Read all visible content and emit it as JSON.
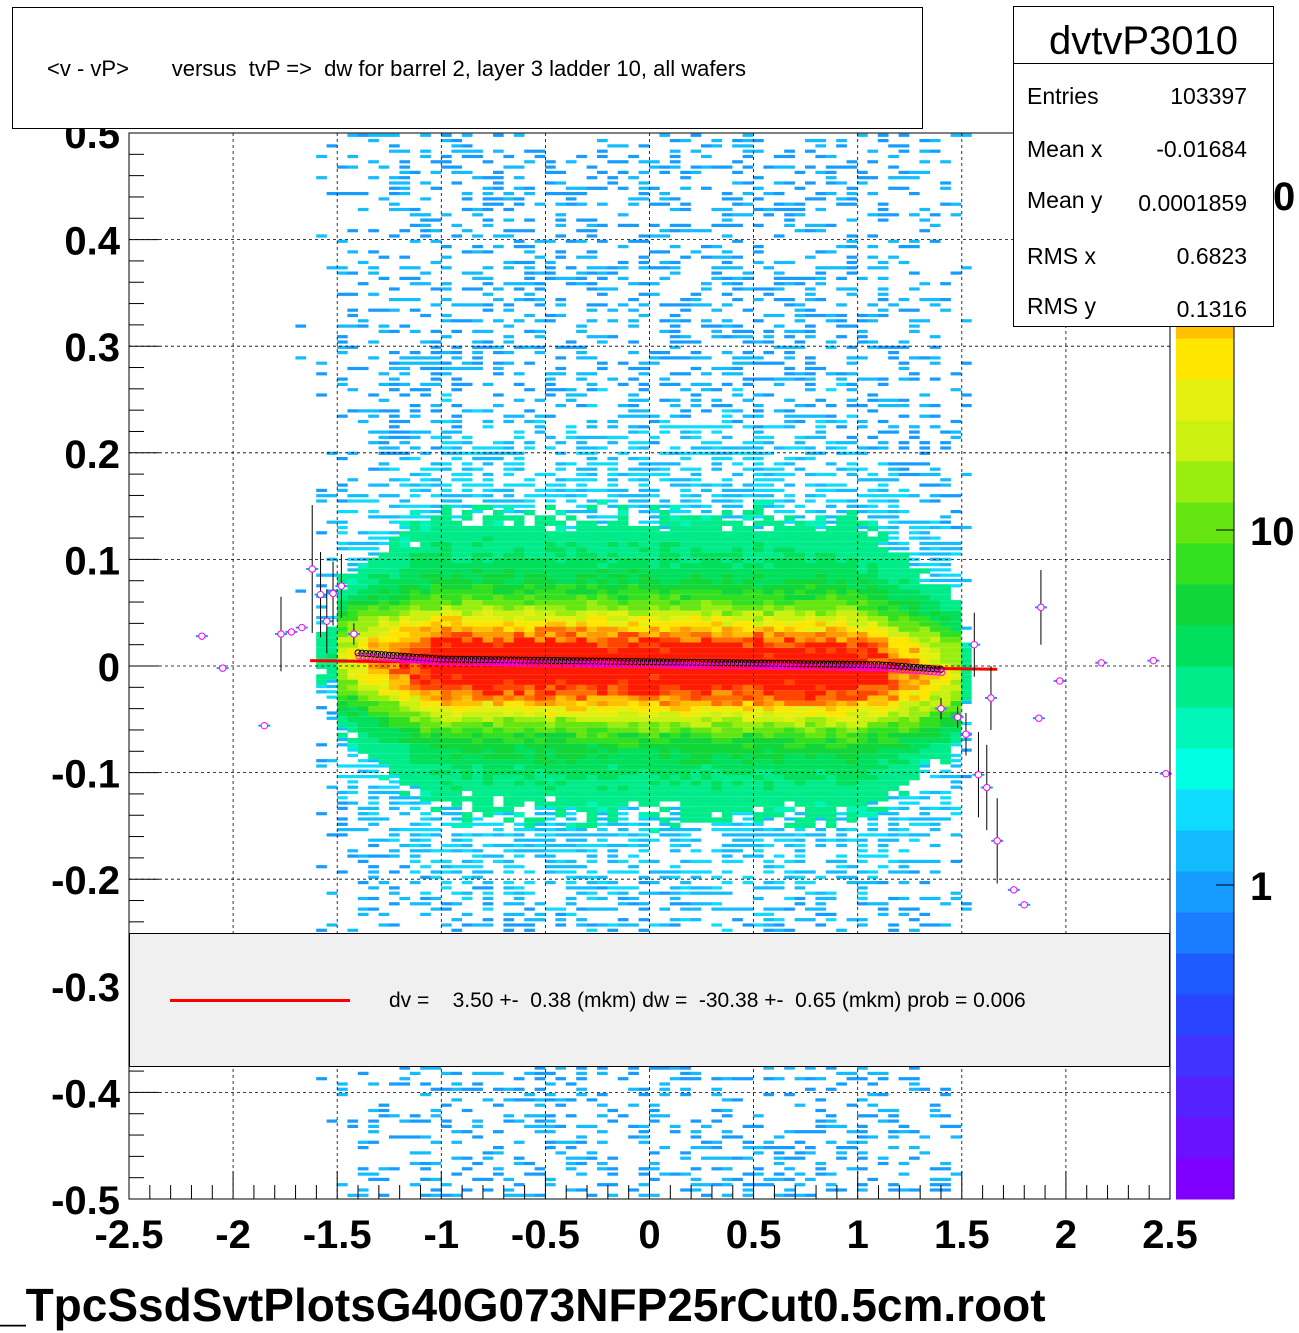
{
  "title": "<v - vP>       versus  tvP =>  dw for barrel 2, layer 3 ladder 10, all wafers",
  "stats": {
    "name": "dvtvP3010",
    "rows": [
      {
        "label": "Entries",
        "value": "103397"
      },
      {
        "label": "Mean x",
        "value": "-0.01684"
      },
      {
        "label": "Mean y",
        "value": "0.0001859"
      },
      {
        "label": "RMS x",
        "value": "0.6823"
      },
      {
        "label": "RMS y",
        "value": "0.1316"
      }
    ]
  },
  "legend": {
    "text": "dv =    3.50 +-  0.38 (mkm) dw =  -30.38 +-  0.65 (mkm) prob = 0.006",
    "line_color": "#ff0000"
  },
  "footer": "_TpcSsdSvtPlotsG40G073NFP25rCut0.5cm.root",
  "colors": {
    "palette": [
      "#7f00ff",
      "#6a11ff",
      "#5522ff",
      "#4033ff",
      "#2b44ff",
      "#1e5cff",
      "#1a7cff",
      "#169cff",
      "#12bcff",
      "#0edcff",
      "#00ffe5",
      "#00f5b8",
      "#00eb8a",
      "#00e05c",
      "#11d63a",
      "#33e020",
      "#66e610",
      "#99ee10",
      "#ccf010",
      "#e6f010",
      "#ffe600",
      "#ffc000",
      "#ff9a00",
      "#ff7000",
      "#ff4500",
      "#ff1a00"
    ],
    "fit_line": "#ff0000",
    "marker_black": "#000000",
    "marker_magenta": "#ff00ff"
  },
  "chart_data": {
    "type": "heatmap",
    "xlim": [
      -2.5,
      2.5
    ],
    "ylim": [
      -0.5,
      0.5
    ],
    "x_ticks": [
      "-2.5",
      "-2",
      "-1.5",
      "-1",
      "-0.5",
      "0",
      "0.5",
      "1",
      "1.5",
      "2",
      "2.5"
    ],
    "y_ticks": [
      "-0.5",
      "-0.4",
      "-0.3",
      "-0.2",
      "-0.1",
      "0",
      "0.1",
      "0.2",
      "0.3",
      "0.4",
      "0.5"
    ],
    "z_ticks": [
      "1",
      "10"
    ],
    "z_partial_label": "0",
    "grid": true,
    "band": {
      "x_range": [
        -1.5,
        1.5
      ],
      "center_y": 0.0,
      "core_width": 0.03
    },
    "fit_line": {
      "x": [
        -1.63,
        1.67
      ],
      "y": [
        0.005,
        -0.003
      ]
    },
    "profile_points": [
      {
        "x": -2.15,
        "y": 0.028,
        "err": 0.0
      },
      {
        "x": -2.05,
        "y": -0.002,
        "err": 0.0
      },
      {
        "x": -1.85,
        "y": -0.056,
        "err": 0.0
      },
      {
        "x": -1.77,
        "y": 0.03,
        "err": 0.035
      },
      {
        "x": -1.72,
        "y": 0.032,
        "err": 0.0
      },
      {
        "x": -1.67,
        "y": 0.036,
        "err": 0.0
      },
      {
        "x": -1.62,
        "y": 0.091,
        "err": 0.06
      },
      {
        "x": -1.58,
        "y": 0.067,
        "err": 0.04
      },
      {
        "x": -1.55,
        "y": 0.042,
        "err": 0.03
      },
      {
        "x": -1.52,
        "y": 0.068,
        "err": 0.03
      },
      {
        "x": -1.48,
        "y": 0.075,
        "err": 0.03
      },
      {
        "x": -1.42,
        "y": 0.03,
        "err": 0.01
      },
      {
        "x": 1.4,
        "y": -0.04,
        "err": 0.01
      },
      {
        "x": 1.48,
        "y": -0.048,
        "err": 0.01
      },
      {
        "x": 1.52,
        "y": -0.064,
        "err": 0.02
      },
      {
        "x": 1.56,
        "y": 0.02,
        "err": 0.03
      },
      {
        "x": 1.58,
        "y": -0.102,
        "err": 0.04
      },
      {
        "x": 1.62,
        "y": -0.114,
        "err": 0.04
      },
      {
        "x": 1.64,
        "y": -0.03,
        "err": 0.03
      },
      {
        "x": 1.67,
        "y": -0.164,
        "err": 0.04
      },
      {
        "x": 1.75,
        "y": -0.21,
        "err": 0.0
      },
      {
        "x": 1.8,
        "y": -0.224,
        "err": 0.0
      },
      {
        "x": 1.87,
        "y": -0.049,
        "err": 0.0
      },
      {
        "x": 1.88,
        "y": 0.055,
        "err": 0.035
      },
      {
        "x": 1.97,
        "y": -0.014,
        "err": 0.0
      },
      {
        "x": 2.17,
        "y": 0.003,
        "err": 0.0
      },
      {
        "x": 2.42,
        "y": 0.005,
        "err": 0.0
      },
      {
        "x": 2.48,
        "y": -0.101,
        "err": 0.0
      }
    ]
  }
}
